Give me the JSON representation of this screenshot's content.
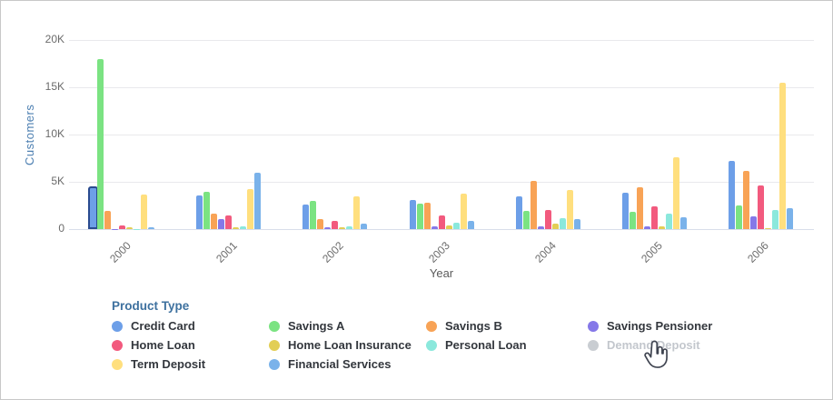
{
  "legend": {
    "title": "Product Type",
    "items": [
      {
        "label": "Credit Card",
        "color": "#6D9FE8",
        "disabled": false
      },
      {
        "label": "Savings A",
        "color": "#7BE382",
        "disabled": false
      },
      {
        "label": "Savings B",
        "color": "#F8A356",
        "disabled": false
      },
      {
        "label": "Savings Pensioner",
        "color": "#8578E8",
        "disabled": false
      },
      {
        "label": "Home Loan",
        "color": "#F25A7E",
        "disabled": false
      },
      {
        "label": "Home Loan Insurance",
        "color": "#E2CE55",
        "disabled": false
      },
      {
        "label": "Personal Loan",
        "color": "#8BE8DC",
        "disabled": false
      },
      {
        "label": "Demand Deposit",
        "color": "#C9CDD2",
        "disabled": true
      },
      {
        "label": "Term Deposit",
        "color": "#FFDF7E",
        "disabled": false
      },
      {
        "label": "Financial Services",
        "color": "#7AB2EA",
        "disabled": false
      }
    ]
  },
  "chart_data": {
    "type": "bar",
    "title": "",
    "xlabel": "Year",
    "ylabel": "Customers",
    "categories": [
      "2000",
      "2001",
      "2002",
      "2003",
      "2004",
      "2005",
      "2006"
    ],
    "y_ticks": [
      {
        "label": "0",
        "value": 0
      },
      {
        "label": "5K",
        "value": 5000
      },
      {
        "label": "10K",
        "value": 10000
      },
      {
        "label": "15K",
        "value": 15000
      },
      {
        "label": "20K",
        "value": 20000
      }
    ],
    "ylim": [
      0,
      20000
    ],
    "grid": "horizontal",
    "legend_position": "bottom",
    "selection": {
      "series": "Credit Card",
      "category": "2000",
      "border_color": "#2A4B8F"
    },
    "series": [
      {
        "name": "Credit Card",
        "color": "#6D9FE8",
        "values": [
          4300,
          3600,
          2600,
          3100,
          3450,
          3850,
          7200
        ]
      },
      {
        "name": "Savings A",
        "color": "#7BE382",
        "values": [
          18000,
          3950,
          2950,
          2700,
          1900,
          1800,
          2500
        ]
      },
      {
        "name": "Savings B",
        "color": "#F8A356",
        "values": [
          1900,
          1650,
          1100,
          2750,
          5100,
          4400,
          6200
        ]
      },
      {
        "name": "Savings Pensioner",
        "color": "#8578E8",
        "values": [
          50,
          1050,
          200,
          300,
          300,
          300,
          1350
        ]
      },
      {
        "name": "Home Loan",
        "color": "#F25A7E",
        "values": [
          350,
          1450,
          850,
          1400,
          2050,
          2400,
          4600
        ]
      },
      {
        "name": "Home Loan Insurance",
        "color": "#E2CE55",
        "values": [
          150,
          150,
          200,
          400,
          600,
          300,
          100
        ]
      },
      {
        "name": "Personal Loan",
        "color": "#8BE8DC",
        "values": [
          50,
          300,
          250,
          700,
          1200,
          1600,
          2000
        ]
      },
      {
        "name": "Demand Deposit",
        "color": "#C9CDD2",
        "disabled": true,
        "values": []
      },
      {
        "name": "Term Deposit",
        "color": "#FFDF7E",
        "values": [
          3650,
          4200,
          3500,
          3800,
          4100,
          7600,
          15500
        ]
      },
      {
        "name": "Financial Services",
        "color": "#7AB2EA",
        "values": [
          200,
          6000,
          600,
          900,
          1100,
          1250,
          2200
        ]
      }
    ]
  },
  "cursor": {
    "type": "hand-pointer"
  }
}
